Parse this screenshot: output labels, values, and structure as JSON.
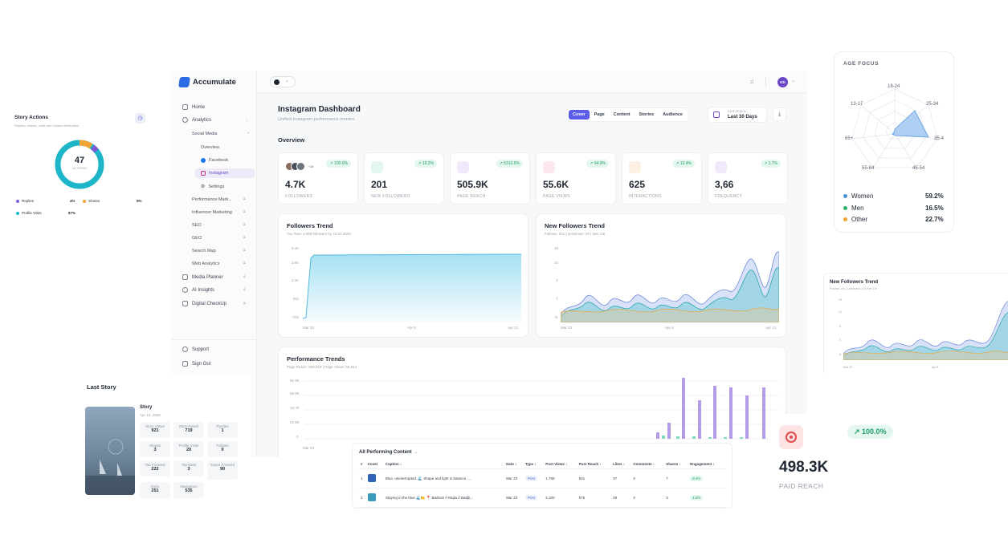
{
  "app": {
    "name": "Accumulate",
    "avatar": "KD"
  },
  "sidebar": {
    "items": [
      {
        "label": "Home"
      },
      {
        "label": "Analytics"
      },
      {
        "label": "Social Media"
      },
      {
        "label": "Overview"
      },
      {
        "label": "Facebook"
      },
      {
        "label": "Instagram"
      },
      {
        "label": "Settings"
      },
      {
        "label": "Performance Mark..."
      },
      {
        "label": "Influencer Marketing"
      },
      {
        "label": "SEO"
      },
      {
        "label": "GEO"
      },
      {
        "label": "Search Map"
      },
      {
        "label": "Web Analytics"
      },
      {
        "label": "Media Planner"
      },
      {
        "label": "AI Insights"
      },
      {
        "label": "Digital CheckUp"
      }
    ],
    "support": "Support",
    "signout": "Sign Out"
  },
  "header": {
    "title": "Instagram Dashboard",
    "subtitle": "Unified Instagram performance monitor.",
    "tabs": [
      "Cover",
      "Page",
      "Content",
      "Stories",
      "Audience"
    ],
    "date_label": "DATE PERIOD",
    "date_value": "Last 30 Days"
  },
  "overview": {
    "title": "Overview",
    "kpis": [
      {
        "value": "4.7K",
        "label": "FOLLOWERS",
        "change": "↗ 100.0%",
        "extra": "+2k"
      },
      {
        "value": "201",
        "label": "NEW FOLLOWERS",
        "change": "↗ 18.2%"
      },
      {
        "value": "505.9K",
        "label": "PAGE REACH",
        "change": "↗ 5310.6%"
      },
      {
        "value": "55.6K",
        "label": "PAGE VIEWS",
        "change": "↗ 64.9%"
      },
      {
        "value": "625",
        "label": "INTERACTIONS",
        "change": "↗ 13.4%"
      },
      {
        "value": "3,66",
        "label": "FREQUENCY",
        "change": "↗ 1.7%"
      }
    ]
  },
  "followers_trend": {
    "title": "Followers Trend",
    "subtitle": "You have 4,689 followers by 21.04.2026",
    "yticks": [
      "5.4K",
      "3.6K",
      "2.3K",
      "601",
      "-703"
    ],
    "xticks": [
      "Mar 23",
      "Apr 6",
      "Apr 21"
    ]
  },
  "new_followers_trend": {
    "title": "New Followers Trend",
    "subtitle": "Follows: 201 | Unfollows: 00 | Net: 1III",
    "yticks": [
      "15",
      "10",
      "3",
      "1",
      "-5"
    ],
    "xticks": [
      "Mar 23",
      "Apr 6",
      "Apr 21"
    ]
  },
  "performance_trends": {
    "title": "Performance Trends",
    "subtitle": "Page Reach: 505,919 | Page Views: 55,614",
    "yticks": [
      "81.6K",
      "68.6K",
      "45.7K",
      "22.8K",
      "0"
    ],
    "xticks": [
      "Mar 23"
    ]
  },
  "story_actions": {
    "title": "Story Actions",
    "subtitle": "Replies, shares, visits and follows distribution",
    "total": "47",
    "total_label": "ACTIONS",
    "legend": [
      {
        "label": "Replies",
        "value": "4%",
        "color": "#7c5cd6"
      },
      {
        "label": "Shares",
        "value": "9%",
        "color": "#f0a431"
      },
      {
        "label": "Profile Visits",
        "value": "87%",
        "color": "#1fb5c9"
      }
    ]
  },
  "age_focus": {
    "title": "AGE FOCUS",
    "axes": [
      "18-24",
      "25-34",
      "35-4",
      "45-54",
      "55-64",
      "65+",
      "13-17"
    ],
    "legend": [
      {
        "label": "Women",
        "value": "59.2%",
        "color": "#4a90d9"
      },
      {
        "label": "Men",
        "value": "16.5%",
        "color": "#2fb36c"
      },
      {
        "label": "Other",
        "value": "22.7%",
        "color": "#f0a431"
      }
    ]
  },
  "mini_trend": {
    "title": "New Followers Trend",
    "subtitle": "Follows: 201 | Unfollows: 00 | Net: 1III",
    "yticks": [
      "15",
      "10",
      "5",
      "0",
      "-5"
    ],
    "xticks": [
      "Mar 23",
      "Apr 6"
    ]
  },
  "last_story": {
    "title": "Last Story",
    "name": "Story",
    "date": "Apr 13, 2026",
    "stats": [
      {
        "k": "Story Views",
        "v": "921"
      },
      {
        "k": "Story Reach",
        "v": "719"
      },
      {
        "k": "Replies",
        "v": "1"
      },
      {
        "k": "Shares",
        "v": "3"
      },
      {
        "k": "Profile Visits",
        "v": "20"
      },
      {
        "k": "Follows",
        "v": "0"
      },
      {
        "k": "Tap Forward",
        "v": "222"
      },
      {
        "k": "Tap Back",
        "v": "3"
      },
      {
        "k": "Swipe Forward",
        "v": "90"
      },
      {
        "k": "Exits",
        "v": "251"
      },
      {
        "k": "Navigation",
        "v": "535"
      }
    ]
  },
  "content_table": {
    "title": "All Performing Content",
    "headers": [
      "#",
      "Cover",
      "Caption ↕",
      "Date ↕",
      "Type ↕",
      "Post Views ↕",
      "Post Reach ↕",
      "Likes ↕",
      "Comments ↕",
      "Shares ↕",
      "Engagement ↕"
    ],
    "rows": [
      [
        "1",
        "",
        "Blue, uninterrupted. 🌊 Shape and light in balance. ...",
        "Mar 23",
        "Post",
        "1,769",
        "831",
        "37",
        "0",
        "7",
        "9.4%"
      ],
      [
        "2",
        "",
        "Staying in the blue 🌊🍋 📍 Badrum // Mujla // Badjk...",
        "Mar 23",
        "Post",
        "2,100",
        "975",
        "29",
        "0",
        "3",
        "4.2%"
      ]
    ]
  },
  "paid_reach": {
    "change": "↗ 100.0%",
    "value": "498.3K",
    "label": "PAID REACH"
  }
}
